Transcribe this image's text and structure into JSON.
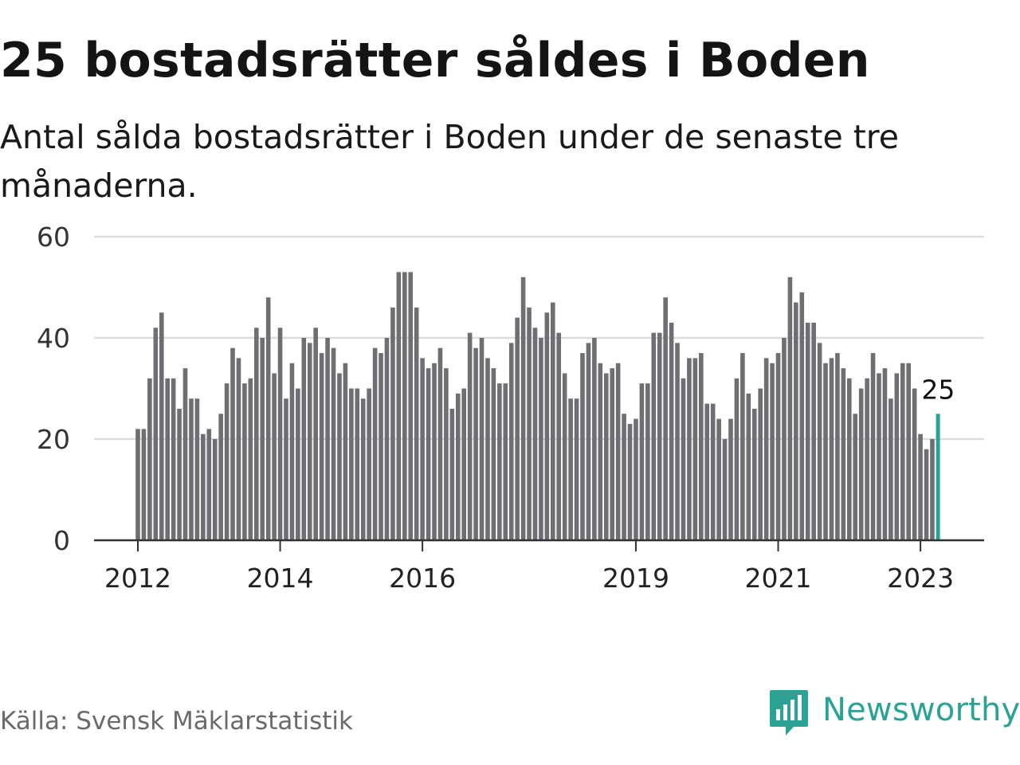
{
  "title": "25 bostadsrätter såldes i Boden",
  "subtitle": "Antal sålda bostadsrätter i Boden under de senaste tre månaderna.",
  "source": "Källa: Svensk Mäklarstatistik",
  "brand": {
    "name": "Newsworthy",
    "color": "#2aa395",
    "icon": "newsworthy-bar-chart-icon"
  },
  "chart_data": {
    "type": "bar",
    "title": "25 bostadsrätter såldes i Boden",
    "subtitle": "Antal sålda bostadsrätter i Boden under de senaste tre månaderna.",
    "xlabel": "",
    "ylabel": "",
    "ylim": [
      0,
      60
    ],
    "yticks": [
      0,
      20,
      40,
      60
    ],
    "grid": true,
    "legend": "none",
    "x_tick_labels": [
      "2012",
      "2014",
      "2016",
      "2019",
      "2021",
      "2023"
    ],
    "x_start": "2012-01",
    "frequency": "monthly",
    "bar_color": "#6f6e73",
    "highlight_color": "#2aa395",
    "highlight_label": "25",
    "series": [
      {
        "values": [
          22,
          22,
          32,
          42,
          45,
          32,
          32,
          26,
          34,
          28,
          28,
          21,
          22,
          20,
          25,
          31,
          38,
          36,
          31,
          32,
          42,
          40,
          48,
          33,
          42,
          28,
          35,
          30,
          40,
          39,
          42,
          37,
          40,
          38,
          33,
          35,
          30,
          30,
          28,
          30,
          38,
          37,
          40,
          46,
          53,
          53,
          53,
          46,
          36,
          34,
          35,
          38,
          34,
          26,
          29,
          30,
          41,
          38,
          40,
          36,
          34,
          31,
          31,
          39,
          44,
          52,
          46,
          42,
          40,
          45,
          47,
          41,
          33,
          28,
          28,
          37,
          39,
          40,
          35,
          33,
          34,
          35,
          25,
          23,
          24,
          31,
          31,
          41,
          41,
          48,
          43,
          39,
          32,
          36,
          36,
          37,
          27,
          27,
          24,
          20,
          24,
          32,
          37,
          29,
          26,
          30,
          36,
          35,
          37,
          40,
          52,
          47,
          49,
          43,
          43,
          39,
          35,
          36,
          37,
          34,
          32,
          25,
          30,
          32,
          37,
          33,
          34,
          28,
          33,
          35,
          35,
          30,
          21,
          18,
          20,
          25
        ]
      }
    ]
  }
}
